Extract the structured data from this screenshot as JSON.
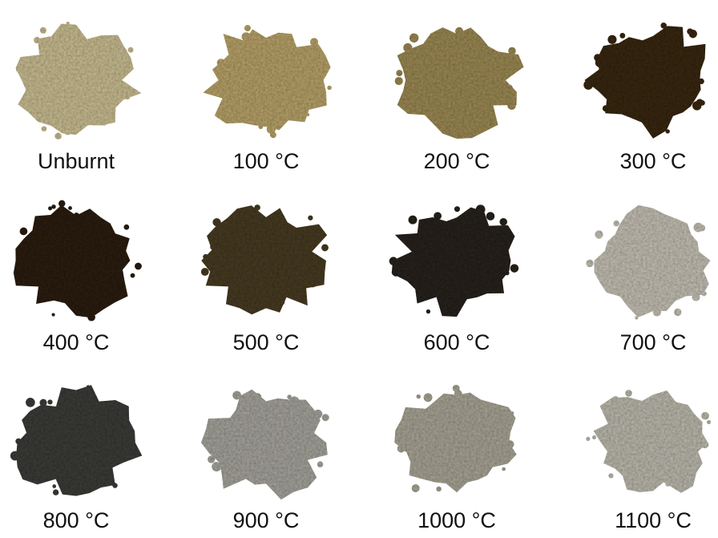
{
  "samples": [
    {
      "label": "Unburnt"
    },
    {
      "label": "100 °C"
    },
    {
      "label": "200 °C"
    },
    {
      "label": "300 °C"
    },
    {
      "label": "400 °C"
    },
    {
      "label": "500 °C"
    },
    {
      "label": "600 °C"
    },
    {
      "label": "700 °C"
    },
    {
      "label": "800 °C"
    },
    {
      "label": "900 °C"
    },
    {
      "label": "1000 °C"
    },
    {
      "label": "1100 °C"
    }
  ]
}
